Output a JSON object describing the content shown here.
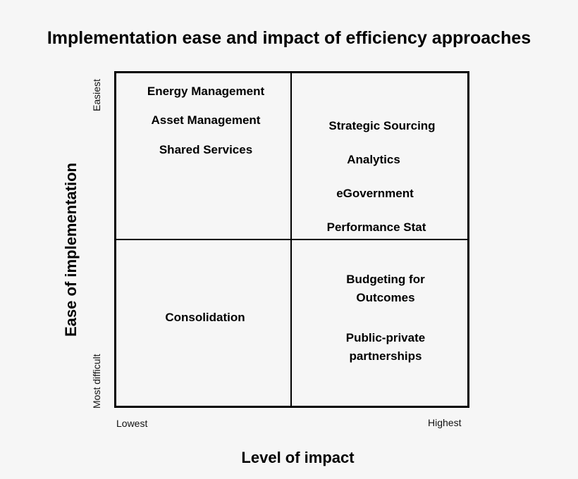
{
  "title": "Implementation ease and impact of efficiency approaches",
  "axes": {
    "x_label": "Level of impact",
    "x_low": "Lowest",
    "x_high": "Highest",
    "y_label": "Ease of implementation",
    "y_high": "Easiest",
    "y_low": "Most difficult"
  },
  "quadrants": {
    "easy_low_impact": [
      "Energy Management",
      "Asset Management",
      "Shared Services"
    ],
    "easy_high_impact": [
      "Strategic Sourcing",
      "Analytics",
      "eGovernment",
      "Performance Stat"
    ],
    "difficult_low_impact": [
      "Consolidation"
    ],
    "difficult_high_impact": [
      [
        "Budgeting for",
        "Outcomes"
      ],
      [
        "Public-private",
        "partnerships"
      ]
    ]
  }
}
